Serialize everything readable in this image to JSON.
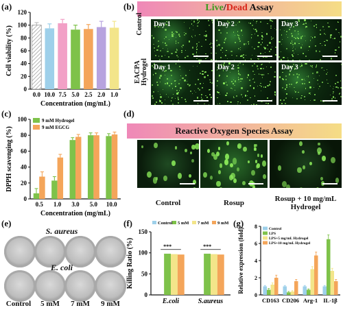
{
  "panels": {
    "a": "(a)",
    "b": "(b)",
    "c": "(c)",
    "d": "(d)",
    "e": "(e)",
    "f": "(f)",
    "g": "(g)"
  },
  "colors": {
    "hatch": "#bfbfbf",
    "blue": "#9ed0ea",
    "pink": "#f2a0c6",
    "green": "#7ec24a",
    "orange": "#f4a55a",
    "purple": "#b7a3df",
    "yellow": "#f3e58a",
    "live": "#7fd34a",
    "dead": "#e33b2f",
    "banner_start": "#ef88b8",
    "banner_end": "#f5dd85"
  },
  "live_dead": {
    "title_live": "Live",
    "title_sep": "/",
    "title_dead": "Dead",
    "title_rest": " Assay",
    "rows": [
      "Control",
      "EACPA Hydrogel"
    ],
    "days": [
      "Day 1",
      "Day 2",
      "Day 3"
    ]
  },
  "ros": {
    "title": "Reactive Oxygen Species Assay",
    "labels": [
      "Control",
      "Rosup",
      "Rosup + 10 mg/mL Hydrogel"
    ]
  },
  "petri": {
    "saureus": "S. aureus",
    "ecoli": "E. coli",
    "labels": [
      "Control",
      "5 mM",
      "7 mM",
      "9 mM"
    ]
  },
  "chart_data": [
    {
      "id": "a",
      "type": "bar",
      "categories": [
        "0.0",
        "10.0",
        "7.5",
        "5.0",
        "2.5",
        "2.0",
        "1.0"
      ],
      "values": [
        100,
        95,
        103,
        93,
        94,
        97,
        96
      ],
      "errors": [
        4,
        7,
        6,
        7,
        7,
        9,
        10
      ],
      "colors": [
        "#bfbfbf",
        "#9ed0ea",
        "#f2a0c6",
        "#7ec24a",
        "#f4a55a",
        "#b7a3df",
        "#f3e58a"
      ],
      "xlabel": "Concentration (mg/mL)",
      "ylabel": "Cell viability (%)",
      "ylim": [
        0,
        120
      ],
      "yticks": [
        "0",
        "20",
        "40",
        "60",
        "80",
        "100",
        "120"
      ]
    },
    {
      "id": "c",
      "type": "bar",
      "categories": [
        "0.5",
        "1.0",
        "3.0",
        "5.0",
        "10.0"
      ],
      "series": [
        {
          "name": "9 mM Hydrogel",
          "values": [
            7,
            23,
            74,
            80,
            79
          ],
          "errors": [
            6,
            5,
            3,
            3,
            3
          ]
        },
        {
          "name": "9 mM EGCG",
          "values": [
            28,
            52,
            78,
            80,
            81
          ],
          "errors": [
            6,
            4,
            3,
            3,
            3
          ]
        }
      ],
      "xlabel": "Concentration (mg/mL)",
      "ylabel": "DPPH scavenging (%)",
      "ylim": [
        0,
        100
      ],
      "yticks": [
        "0",
        "20",
        "40",
        "60",
        "80",
        "100"
      ],
      "legend": "top-left"
    },
    {
      "id": "f",
      "type": "bar",
      "categories": [
        "E.coli",
        "S.aureus"
      ],
      "series": [
        {
          "name": "Control",
          "values": [
            0,
            0
          ]
        },
        {
          "name": "5 mM",
          "values": [
            98,
            98
          ]
        },
        {
          "name": "7 mM",
          "values": [
            97,
            97
          ]
        },
        {
          "name": "9 mM",
          "values": [
            96,
            96
          ]
        }
      ],
      "sig": "***",
      "ylabel": "Killing Ratio (%)",
      "ylim": [
        0,
        150
      ],
      "yticks": [
        "0",
        "50",
        "100",
        "150"
      ],
      "legend": "top"
    },
    {
      "id": "g",
      "type": "bar",
      "categories": [
        "CD163",
        "CD206",
        "Arg-1",
        "IL-1β"
      ],
      "series": [
        {
          "name": "Control",
          "values": [
            1.0,
            1.0,
            1.0,
            1.0
          ],
          "errors": [
            0.1,
            0.1,
            0.1,
            0.1
          ]
        },
        {
          "name": "LPS",
          "values": [
            0.6,
            0.3,
            0.6,
            6.5
          ],
          "errors": [
            0.15,
            0.1,
            0.1,
            0.5
          ]
        },
        {
          "name": "LPS+5 mg/mL Hydrogel",
          "values": [
            1.2,
            0.4,
            3.0,
            2.8
          ],
          "errors": [
            0.2,
            0.1,
            0.3,
            0.3
          ]
        },
        {
          "name": "LPS+10 mg/mL Hydrogel",
          "values": [
            2.0,
            1.6,
            4.6,
            1.6
          ],
          "errors": [
            0.3,
            0.2,
            0.4,
            0.2
          ]
        }
      ],
      "sig_labels": [
        "*",
        "***",
        "***",
        "**"
      ],
      "ylabel": "Relative expression (fold)",
      "ylim": [
        0,
        8
      ],
      "yticks": [
        "0",
        "2",
        "4",
        "6",
        "8"
      ],
      "legend": "top-left"
    }
  ]
}
